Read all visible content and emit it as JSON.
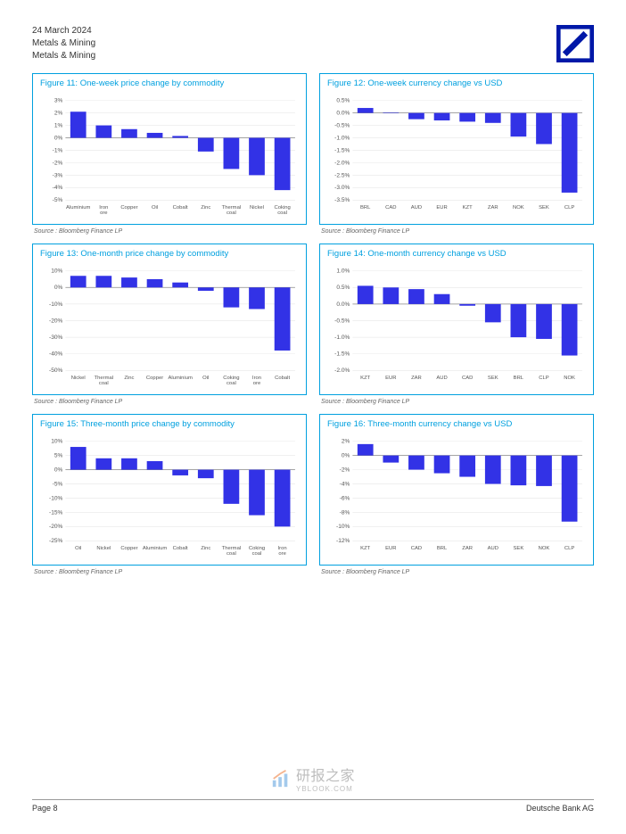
{
  "header": {
    "date": "24 March 2024",
    "line1": "Metals & Mining",
    "line2": "Metals & Mining"
  },
  "footer": {
    "page": "Page 8",
    "company": "Deutsche Bank AG"
  },
  "watermark": {
    "text": "研报之家",
    "url": "YBLOOK.COM"
  },
  "source_label": "Source : Bloomberg Finance LP",
  "charts": {
    "f11": {
      "title": "Figure 11: One-week price change by commodity",
      "type": "bar",
      "categories": [
        "Aluminium",
        "Iron ore",
        "Copper",
        "Oil",
        "Cobalt",
        "Zinc",
        "Thermal coal",
        "Nickel",
        "Coking coal"
      ],
      "values": [
        2.1,
        1.0,
        0.7,
        0.4,
        0.15,
        -1.1,
        -2.5,
        -3.0,
        -4.2
      ],
      "ylim": [
        -5,
        3
      ],
      "ytick_step": 1,
      "bar_color": "#3232e6",
      "background_color": "#ffffff",
      "grid_color": "#e0e0e0",
      "label_fontsize": 6.5,
      "title_fontsize": 9.5,
      "bar_width": 0.62
    },
    "f12": {
      "title": "Figure 12: One-week currency change vs USD",
      "type": "bar",
      "categories": [
        "BRL",
        "CAD",
        "AUD",
        "EUR",
        "KZT",
        "ZAR",
        "NOK",
        "SEK",
        "CLP"
      ],
      "values": [
        0.2,
        0.02,
        -0.25,
        -0.3,
        -0.35,
        -0.4,
        -0.95,
        -1.25,
        -3.2
      ],
      "ylim": [
        -3.5,
        0.5
      ],
      "ytick_step": 0.5,
      "bar_color": "#3232e6",
      "background_color": "#ffffff",
      "grid_color": "#e0e0e0",
      "label_fontsize": 6.5,
      "title_fontsize": 9.5,
      "bar_width": 0.62
    },
    "f13": {
      "title": "Figure 13: One-month price change by commodity",
      "type": "bar",
      "categories": [
        "Nickel",
        "Thermal coal",
        "Zinc",
        "Copper",
        "Aluminium",
        "Oil",
        "Coking coal",
        "Iron ore",
        "Cobalt"
      ],
      "values": [
        7,
        7,
        6,
        5,
        3,
        -2,
        -12,
        -13,
        -38
      ],
      "ylim": [
        -50,
        10
      ],
      "ytick_step": 10,
      "bar_color": "#3232e6",
      "background_color": "#ffffff",
      "grid_color": "#e0e0e0",
      "label_fontsize": 6.5,
      "title_fontsize": 9.5,
      "bar_width": 0.62
    },
    "f14": {
      "title": "Figure 14: One-month currency change vs USD",
      "type": "bar",
      "categories": [
        "KZT",
        "EUR",
        "ZAR",
        "AUD",
        "CAD",
        "SEK",
        "BRL",
        "CLP",
        "NOK"
      ],
      "values": [
        0.55,
        0.5,
        0.45,
        0.3,
        -0.05,
        -0.55,
        -1.0,
        -1.05,
        -1.55
      ],
      "ylim": [
        -2.0,
        1.0
      ],
      "ytick_step": 0.5,
      "bar_color": "#3232e6",
      "background_color": "#ffffff",
      "grid_color": "#e0e0e0",
      "label_fontsize": 6.5,
      "title_fontsize": 9.5,
      "bar_width": 0.62
    },
    "f15": {
      "title": "Figure 15: Three-month price change by commodity",
      "type": "bar",
      "categories": [
        "Oil",
        "Nickel",
        "Copper",
        "Aluminium",
        "Cobalt",
        "Zinc",
        "Thermal coal",
        "Coking coal",
        "Iron ore"
      ],
      "values": [
        8,
        4,
        4,
        3,
        -2,
        -3,
        -12,
        -16,
        -20
      ],
      "ylim": [
        -25,
        10
      ],
      "ytick_step": 5,
      "bar_color": "#3232e6",
      "background_color": "#ffffff",
      "grid_color": "#e0e0e0",
      "label_fontsize": 6.5,
      "title_fontsize": 9.5,
      "bar_width": 0.62
    },
    "f16": {
      "title": "Figure 16: Three-month currency change vs USD",
      "type": "bar",
      "categories": [
        "KZT",
        "EUR",
        "CAD",
        "BRL",
        "ZAR",
        "AUD",
        "SEK",
        "NOK",
        "CLP"
      ],
      "values": [
        1.6,
        -1.0,
        -2.0,
        -2.5,
        -3.0,
        -4.0,
        -4.2,
        -4.3,
        -9.3
      ],
      "ylim": [
        -12,
        2
      ],
      "ytick_step": 2,
      "bar_color": "#3232e6",
      "background_color": "#ffffff",
      "grid_color": "#e0e0e0",
      "label_fontsize": 6.5,
      "title_fontsize": 9.5,
      "bar_width": 0.62
    }
  }
}
